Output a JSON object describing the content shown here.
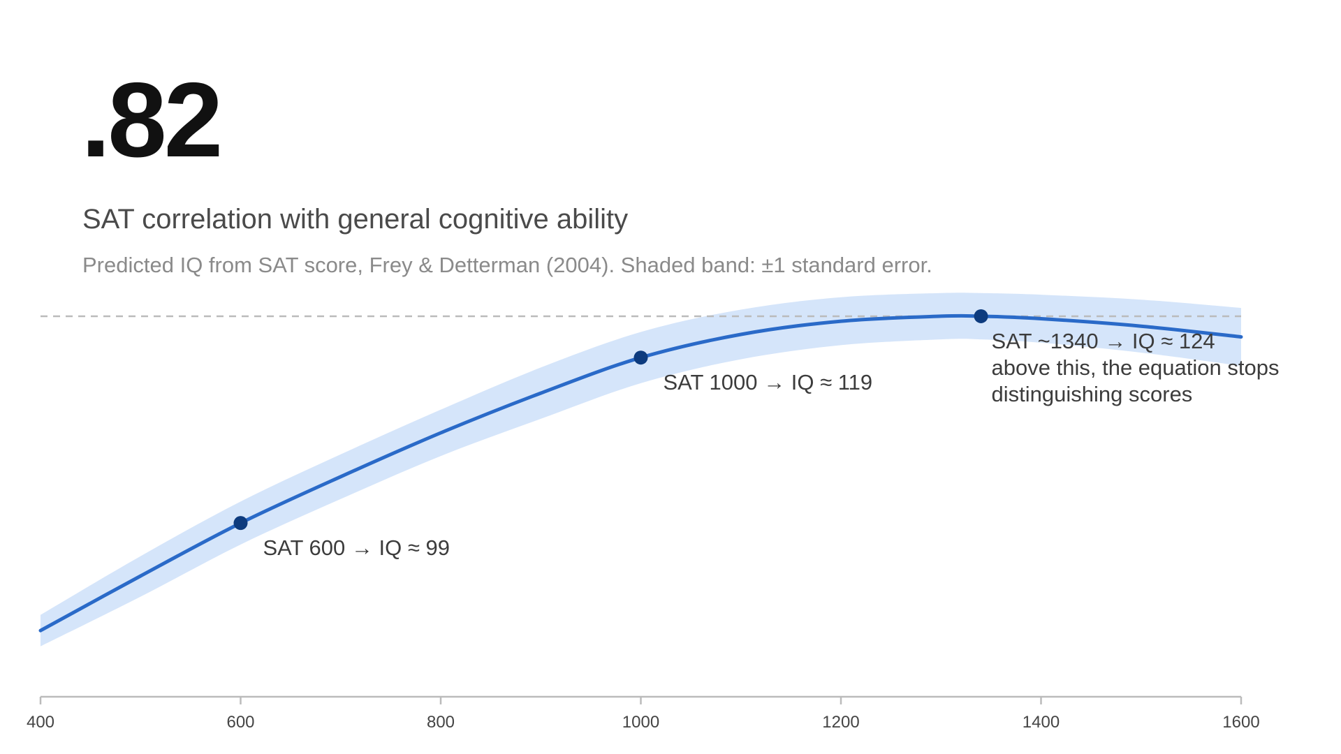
{
  "header": {
    "stat": ".82",
    "title": "SAT correlation with general cognitive ability",
    "subtitle": "Predicted IQ from SAT score, Frey & Detterman (2004). Shaded band: ±1 standard error."
  },
  "colors": {
    "line": "#2a6ac8",
    "band": "#d5e5fa",
    "point": "#0d3b7e",
    "reference": "#bbbbbb",
    "axis": "#bbbbbb"
  },
  "chart_data": {
    "type": "line",
    "xlabel": "",
    "ylabel": "",
    "xlim": [
      400,
      1600
    ],
    "ylim": [
      78,
      131
    ],
    "x_ticks": [
      400,
      600,
      800,
      1000,
      1200,
      1400,
      1600
    ],
    "reference_line": {
      "y": 124,
      "style": "dashed"
    },
    "series": [
      {
        "x": [
          400,
          500,
          600,
          700,
          800,
          900,
          1000,
          1100,
          1200,
          1300,
          1340,
          1400,
          1500,
          1600
        ],
        "y": [
          86.0,
          92.6,
          99.0,
          104.6,
          109.9,
          114.7,
          119.0,
          121.8,
          123.4,
          124.0,
          124.0,
          123.7,
          122.8,
          121.5
        ],
        "band_upper": [
          87.9,
          95.0,
          101.6,
          107.3,
          112.7,
          117.8,
          122.1,
          124.8,
          126.3,
          126.8,
          126.8,
          126.6,
          126.0,
          125.0
        ],
        "band_lower": [
          84.1,
          90.1,
          96.4,
          101.9,
          107.1,
          111.6,
          115.9,
          118.8,
          120.5,
          121.2,
          121.2,
          120.8,
          119.6,
          118.0
        ]
      }
    ],
    "annotations": [
      {
        "x": 600,
        "y": 99,
        "lines": [
          "SAT 600 → IQ ≈ 99"
        ]
      },
      {
        "x": 1000,
        "y": 119,
        "lines": [
          "SAT 1000 → IQ ≈ 119"
        ]
      },
      {
        "x": 1340,
        "y": 124,
        "lines": [
          "SAT ~1340 → IQ ≈ 124",
          "above this, the equation stops",
          "distinguishing scores"
        ]
      }
    ]
  }
}
